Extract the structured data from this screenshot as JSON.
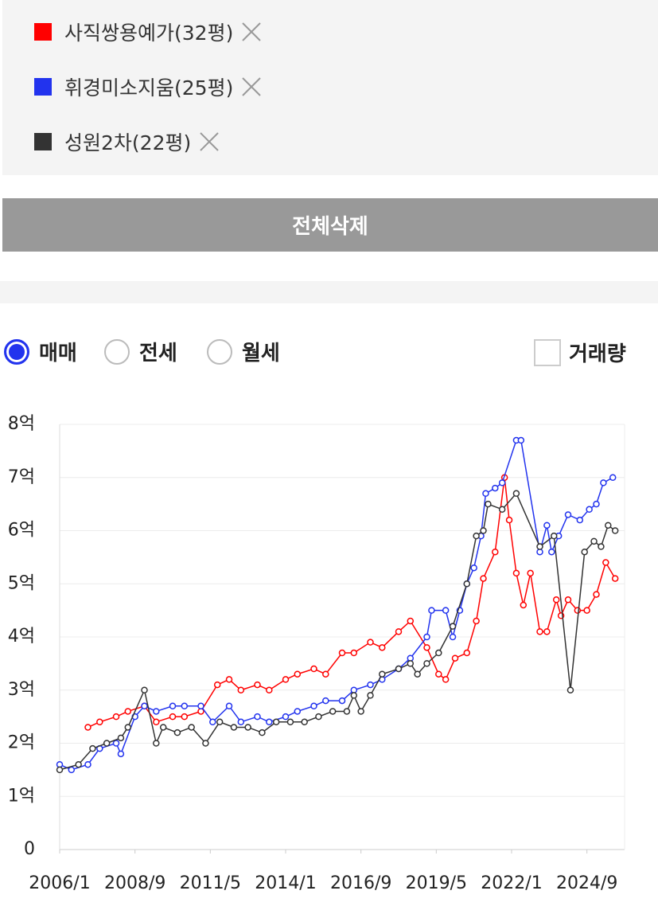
{
  "delete_all_button": "전체삭제",
  "radio_options": [
    "매매",
    "전세",
    "월세"
  ],
  "selected_radio": 0,
  "checkbox_label": "거래량",
  "chart_data": {
    "type": "line",
    "ylim": [
      0,
      8
    ],
    "yticks": [
      0,
      {
        "value": 1,
        "label": "1억"
      },
      {
        "value": 2,
        "label": "2억"
      },
      {
        "value": 3,
        "label": "3억"
      },
      {
        "value": 4,
        "label": "4억"
      },
      {
        "value": 5,
        "label": "5억"
      },
      {
        "value": 6,
        "label": "6억"
      },
      {
        "value": 7,
        "label": "7억"
      },
      {
        "value": 8,
        "label": "8억"
      }
    ],
    "xlim": [
      "2006/1",
      "2026/1"
    ],
    "xticks": [
      "2006/1",
      "2008/9",
      "2011/5",
      "2014/1",
      "2016/9",
      "2019/5",
      "2022/1",
      "2024/9"
    ],
    "grid": true,
    "series": [
      {
        "name": "사직쌍용예가(32평)",
        "color": "#ff0000",
        "x": [
          "2007/1",
          "2007/6",
          "2008/1",
          "2008/6",
          "2009/1",
          "2009/6",
          "2010/1",
          "2010/6",
          "2011/1",
          "2011/8",
          "2012/1",
          "2012/6",
          "2013/1",
          "2013/6",
          "2014/1",
          "2014/6",
          "2015/1",
          "2015/6",
          "2016/1",
          "2016/6",
          "2017/1",
          "2017/6",
          "2018/1",
          "2018/6",
          "2019/1",
          "2019/6",
          "2019/9",
          "2020/1",
          "2020/6",
          "2020/10",
          "2021/1",
          "2021/6",
          "2021/10",
          "2021/12",
          "2022/3",
          "2022/6",
          "2022/9",
          "2023/1",
          "2023/4",
          "2023/8",
          "2023/10",
          "2024/1",
          "2024/5",
          "2024/9",
          "2025/1",
          "2025/5",
          "2025/9"
        ],
        "values": [
          2.3,
          2.4,
          2.5,
          2.6,
          2.7,
          2.4,
          2.5,
          2.5,
          2.6,
          3.1,
          3.2,
          3.0,
          3.1,
          3.0,
          3.2,
          3.3,
          3.4,
          3.3,
          3.7,
          3.7,
          3.9,
          3.8,
          4.1,
          4.3,
          3.8,
          3.3,
          3.2,
          3.6,
          3.7,
          4.3,
          5.1,
          5.6,
          7.0,
          6.2,
          5.2,
          4.6,
          5.2,
          4.1,
          4.1,
          4.7,
          4.4,
          4.7,
          4.5,
          4.5,
          4.8,
          5.4,
          5.1
        ]
      },
      {
        "name": "휘경미소지움(25평)",
        "color": "#2233ee",
        "x": [
          "2006/1",
          "2006/6",
          "2007/1",
          "2007/6",
          "2008/1",
          "2008/3",
          "2008/9",
          "2009/1",
          "2009/6",
          "2010/1",
          "2010/6",
          "2011/1",
          "2011/6",
          "2012/1",
          "2012/6",
          "2013/1",
          "2013/6",
          "2014/1",
          "2014/6",
          "2015/1",
          "2015/6",
          "2016/1",
          "2016/6",
          "2017/1",
          "2017/6",
          "2018/1",
          "2018/6",
          "2019/1",
          "2019/3",
          "2019/9",
          "2019/12",
          "2020/3",
          "2020/6",
          "2020/9",
          "2020/12",
          "2021/2",
          "2021/6",
          "2021/9",
          "2022/3",
          "2022/5",
          "2023/1",
          "2023/4",
          "2023/6",
          "2023/9",
          "2024/1",
          "2024/6",
          "2024/10",
          "2025/1",
          "2025/4",
          "2025/8"
        ],
        "values": [
          1.6,
          1.5,
          1.6,
          1.9,
          2.0,
          1.8,
          2.5,
          2.7,
          2.6,
          2.7,
          2.7,
          2.7,
          2.4,
          2.7,
          2.4,
          2.5,
          2.4,
          2.5,
          2.6,
          2.7,
          2.8,
          2.8,
          3.0,
          3.1,
          3.2,
          3.4,
          3.6,
          4.0,
          4.5,
          4.5,
          4.0,
          4.5,
          5.0,
          5.3,
          5.9,
          6.7,
          6.8,
          6.9,
          7.7,
          7.7,
          5.6,
          6.1,
          5.6,
          5.9,
          6.3,
          6.2,
          6.4,
          6.5,
          6.9,
          7.0
        ]
      },
      {
        "name": "성원2차(22평)",
        "color": "#333333",
        "x": [
          "2006/1",
          "2006/9",
          "2007/3",
          "2007/9",
          "2008/3",
          "2008/6",
          "2009/1",
          "2009/6",
          "2009/9",
          "2010/3",
          "2010/9",
          "2011/3",
          "2011/9",
          "2012/3",
          "2012/9",
          "2013/3",
          "2013/9",
          "2014/3",
          "2014/9",
          "2015/3",
          "2015/9",
          "2016/3",
          "2016/6",
          "2016/9",
          "2017/1",
          "2017/6",
          "2018/1",
          "2018/6",
          "2018/9",
          "2019/1",
          "2019/6",
          "2019/12",
          "2020/6",
          "2020/10",
          "2021/1",
          "2021/3",
          "2021/9",
          "2022/3",
          "2023/1",
          "2023/7",
          "2024/2",
          "2024/8",
          "2024/12",
          "2025/3",
          "2025/6",
          "2025/9"
        ],
        "values": [
          1.5,
          1.6,
          1.9,
          2.0,
          2.1,
          2.3,
          3.0,
          2.0,
          2.3,
          2.2,
          2.3,
          2.0,
          2.4,
          2.3,
          2.3,
          2.2,
          2.4,
          2.4,
          2.4,
          2.5,
          2.6,
          2.6,
          2.9,
          2.6,
          2.9,
          3.3,
          3.4,
          3.5,
          3.3,
          3.5,
          3.7,
          4.2,
          5.0,
          5.9,
          6.0,
          6.5,
          6.4,
          6.7,
          5.7,
          5.9,
          3.0,
          5.6,
          5.8,
          5.7,
          6.1,
          6.0
        ]
      }
    ]
  }
}
